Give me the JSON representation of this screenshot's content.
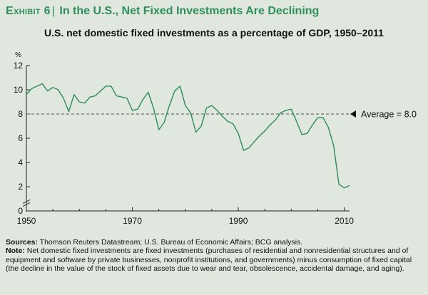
{
  "header": {
    "exhibit_label": "Exhibit 6",
    "exhibit_separator": "|",
    "exhibit_title": "In the U.S., Net Fixed Investments Are Declining",
    "subtitle": "U.S. net domestic fixed investments as a percentage of GDP, 1950–2011"
  },
  "chart_data": {
    "type": "line",
    "title": "U.S. net domestic fixed investments as a percentage of GDP, 1950–2011",
    "xlabel": "",
    "ylabel": "%",
    "xlim": [
      1950,
      2011
    ],
    "ylim": [
      0,
      12
    ],
    "y_axis_break": true,
    "grid": false,
    "x_ticks": [
      "1950",
      "1970",
      "1990",
      "2010"
    ],
    "y_ticks": [
      "0",
      "2",
      "4",
      "6",
      "8",
      "10",
      "12"
    ],
    "line_color": "#2e8b57",
    "reference_line": {
      "value": 8.0,
      "label": "Average = 8.0",
      "style": "dashed"
    },
    "series": [
      {
        "x": [
          1950,
          1951,
          1952,
          1953,
          1954,
          1955,
          1956,
          1957,
          1958,
          1959,
          1960,
          1961,
          1962,
          1963,
          1964,
          1965,
          1966,
          1967,
          1968,
          1969,
          1970,
          1971,
          1972,
          1973,
          1974,
          1975,
          1976,
          1977,
          1978,
          1979,
          1980,
          1981,
          1982,
          1983,
          1984,
          1985,
          1986,
          1987,
          1988,
          1989,
          1990,
          1991,
          1992,
          1993,
          1994,
          1995,
          1996,
          1997,
          1998,
          1999,
          2000,
          2001,
          2002,
          2003,
          2004,
          2005,
          2006,
          2007,
          2008,
          2009,
          2010,
          2011
        ],
        "values": [
          9.6,
          10.1,
          10.3,
          10.5,
          9.9,
          10.2,
          10.0,
          9.3,
          8.2,
          9.6,
          9.0,
          8.9,
          9.4,
          9.5,
          9.9,
          10.3,
          10.3,
          9.5,
          9.4,
          9.3,
          8.3,
          8.4,
          9.2,
          9.8,
          8.5,
          6.7,
          7.3,
          8.7,
          9.9,
          10.3,
          8.7,
          8.1,
          6.5,
          7.0,
          8.5,
          8.7,
          8.3,
          7.8,
          7.4,
          7.2,
          6.4,
          5.0,
          5.2,
          5.7,
          6.2,
          6.6,
          7.1,
          7.5,
          8.1,
          8.3,
          8.4,
          7.4,
          6.3,
          6.4,
          7.1,
          7.7,
          7.7,
          6.9,
          5.4,
          2.2,
          1.9,
          2.1
        ]
      }
    ]
  },
  "footer": {
    "sources_label": "Sources:",
    "sources_text": "Thomson Reuters Datastream; U.S. Bureau of Economic Affairs; BCG analysis.",
    "note_label": "Note:",
    "note_text": "Net domestic fixed investments are fixed investments (purchases of residential and nonresidential structures and of equipment and software by private businesses, nonprofit institutions, and governments) minus consumption of fixed capital (the decline in the value of the stock of fixed assets due to wear and tear, obsolescence, accidental damage, and aging)."
  }
}
